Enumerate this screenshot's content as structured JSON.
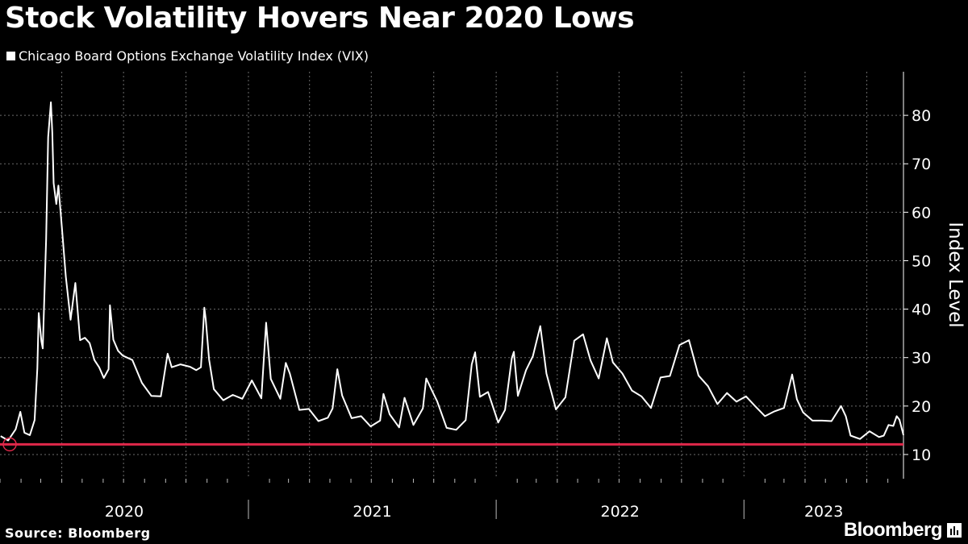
{
  "header": {
    "title": "Stock Volatility Hovers Near 2020 Lows",
    "legend_label": "Chicago Board Options Exchange Volatility Index (VIX)"
  },
  "footer": {
    "source": "Source: Bloomberg",
    "brand": "Bloomberg"
  },
  "colors": {
    "background": "#000000",
    "line": "#ffffff",
    "reference": "#e0284a",
    "grid": "#6b6b6b"
  },
  "chart_data": {
    "type": "line",
    "title": "Stock Volatility Hovers Near 2020 Lows",
    "ylabel": "Index Level",
    "ylim": [
      5,
      89
    ],
    "yticks": [
      10,
      20,
      30,
      40,
      50,
      60,
      70,
      80
    ],
    "x_domain": [
      "2020-01-01",
      "2023-08-24"
    ],
    "x_labels": [
      "2020",
      "2021",
      "2022",
      "2023"
    ],
    "grid": true,
    "legend_position": "top-left",
    "reference_line": {
      "value": 12.1,
      "color": "#e0284a"
    },
    "series": [
      {
        "name": "Chicago Board Options Exchange Volatility Index (VIX)",
        "color": "#ffffff",
        "x": [
          "2020-01-02",
          "2020-01-13",
          "2020-01-24",
          "2020-01-31",
          "2020-02-06",
          "2020-02-14",
          "2020-02-21",
          "2020-02-25",
          "2020-02-27",
          "2020-03-02",
          "2020-03-04",
          "2020-03-09",
          "2020-03-12",
          "2020-03-16",
          "2020-03-18",
          "2020-03-20",
          "2020-03-24",
          "2020-03-27",
          "2020-04-01",
          "2020-04-07",
          "2020-04-14",
          "2020-04-21",
          "2020-04-28",
          "2020-05-05",
          "2020-05-12",
          "2020-05-19",
          "2020-05-26",
          "2020-06-02",
          "2020-06-09",
          "2020-06-11",
          "2020-06-16",
          "2020-06-23",
          "2020-06-30",
          "2020-07-14",
          "2020-07-28",
          "2020-08-11",
          "2020-08-25",
          "2020-09-04",
          "2020-09-10",
          "2020-09-23",
          "2020-10-07",
          "2020-10-16",
          "2020-10-23",
          "2020-10-28",
          "2020-10-30",
          "2020-11-04",
          "2020-11-11",
          "2020-11-25",
          "2020-12-09",
          "2020-12-23",
          "2021-01-06",
          "2021-01-20",
          "2021-01-27",
          "2021-02-03",
          "2021-02-17",
          "2021-02-25",
          "2021-03-03",
          "2021-03-17",
          "2021-03-31",
          "2021-04-14",
          "2021-04-28",
          "2021-05-05",
          "2021-05-12",
          "2021-05-19",
          "2021-06-02",
          "2021-06-16",
          "2021-06-30",
          "2021-07-14",
          "2021-07-19",
          "2021-07-28",
          "2021-08-11",
          "2021-08-19",
          "2021-09-01",
          "2021-09-15",
          "2021-09-20",
          "2021-09-28",
          "2021-10-06",
          "2021-10-20",
          "2021-11-03",
          "2021-11-17",
          "2021-11-26",
          "2021-12-01",
          "2021-12-08",
          "2021-12-20",
          "2022-01-04",
          "2022-01-14",
          "2022-01-24",
          "2022-01-27",
          "2022-02-02",
          "2022-02-14",
          "2022-02-24",
          "2022-03-07",
          "2022-03-16",
          "2022-03-30",
          "2022-04-13",
          "2022-04-26",
          "2022-05-09",
          "2022-05-20",
          "2022-06-01",
          "2022-06-13",
          "2022-06-22",
          "2022-07-06",
          "2022-07-20",
          "2022-08-03",
          "2022-08-17",
          "2022-08-31",
          "2022-09-14",
          "2022-09-28",
          "2022-10-12",
          "2022-10-26",
          "2022-11-09",
          "2022-11-23",
          "2022-12-07",
          "2022-12-21",
          "2023-01-04",
          "2023-01-18",
          "2023-02-01",
          "2023-02-15",
          "2023-03-01",
          "2023-03-13",
          "2023-03-20",
          "2023-03-29",
          "2023-04-12",
          "2023-04-26",
          "2023-05-10",
          "2023-05-24",
          "2023-05-31",
          "2023-06-07",
          "2023-06-21",
          "2023-07-05",
          "2023-07-19",
          "2023-07-26",
          "2023-08-02",
          "2023-08-09",
          "2023-08-14",
          "2023-08-18",
          "2023-08-24"
        ],
        "y": [
          13.8,
          12.9,
          15.2,
          18.8,
          14.5,
          14.0,
          17.1,
          27.8,
          39.2,
          33.4,
          31.9,
          54.5,
          75.5,
          82.7,
          76.5,
          66.0,
          61.7,
          65.5,
          57.1,
          46.7,
          37.8,
          45.4,
          33.6,
          34.1,
          33.0,
          29.5,
          28.0,
          25.8,
          27.6,
          40.8,
          33.7,
          31.4,
          30.4,
          29.5,
          24.8,
          22.1,
          22.0,
          30.8,
          28.0,
          28.6,
          28.1,
          27.4,
          28.0,
          40.3,
          38.0,
          29.6,
          23.5,
          21.2,
          22.3,
          21.5,
          25.3,
          21.6,
          37.2,
          25.6,
          21.5,
          28.9,
          26.7,
          19.2,
          19.4,
          16.9,
          17.6,
          19.5,
          27.6,
          22.2,
          17.5,
          17.9,
          15.8,
          17.0,
          22.5,
          18.3,
          15.6,
          21.7,
          16.1,
          19.5,
          25.7,
          23.3,
          21.0,
          15.5,
          15.1,
          17.1,
          28.6,
          31.1,
          21.9,
          22.9,
          16.6,
          19.2,
          29.9,
          31.2,
          22.1,
          27.4,
          30.3,
          36.5,
          26.7,
          19.3,
          21.8,
          33.5,
          34.8,
          29.4,
          25.7,
          34.0,
          29.0,
          26.7,
          23.2,
          22.0,
          19.6,
          25.9,
          26.2,
          32.6,
          33.6,
          26.3,
          24.1,
          20.4,
          22.7,
          20.9,
          22.0,
          19.9,
          17.9,
          18.9,
          19.6,
          26.5,
          21.4,
          18.7,
          17.0,
          17.0,
          16.9,
          20.0,
          17.9,
          13.9,
          13.2,
          14.8,
          13.6,
          13.9,
          16.1,
          15.9,
          17.9,
          17.2,
          14.0
        ]
      }
    ]
  }
}
